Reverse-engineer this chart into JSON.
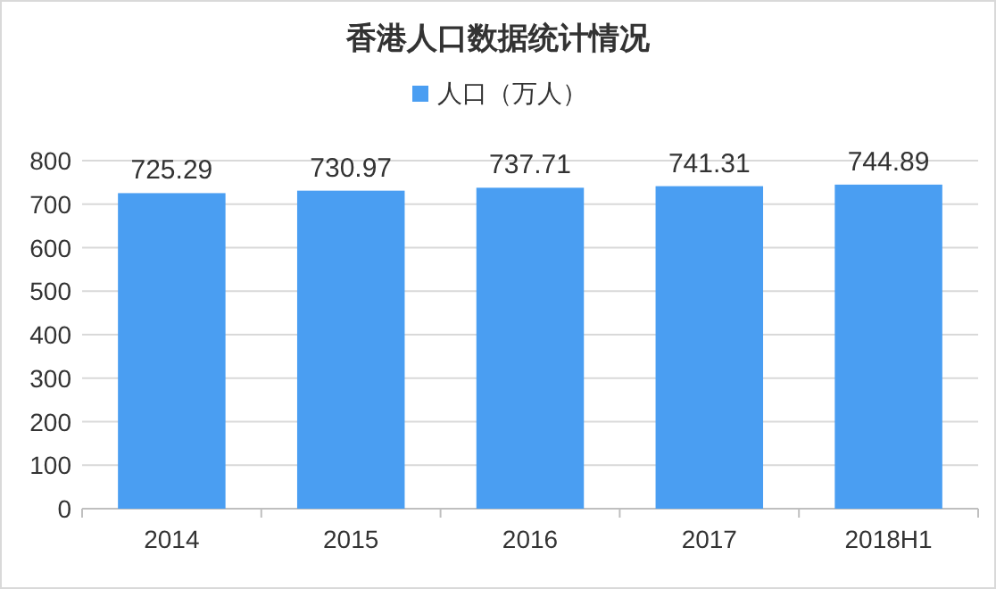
{
  "chart_data": {
    "type": "bar",
    "title": "香港人口数据统计情况",
    "categories": [
      "2014",
      "2015",
      "2016",
      "2017",
      "2018H1"
    ],
    "series": [
      {
        "name": "人口（万人）",
        "color": "#4a9ef2",
        "values": [
          725.29,
          730.97,
          737.71,
          741.31,
          744.89
        ]
      }
    ],
    "ylim": [
      0,
      800
    ],
    "yticks": [
      0,
      100,
      200,
      300,
      400,
      500,
      600,
      700,
      800
    ],
    "grid": "y",
    "legend": "top",
    "data_labels": true
  }
}
